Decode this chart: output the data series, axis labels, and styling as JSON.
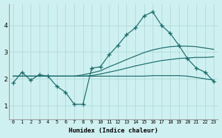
{
  "title": "",
  "xlabel": "Humidex (Indice chaleur)",
  "x_ticks": [
    0,
    1,
    2,
    3,
    4,
    5,
    6,
    7,
    8,
    9,
    10,
    11,
    12,
    13,
    14,
    15,
    16,
    17,
    18,
    19,
    20,
    21,
    22,
    23
  ],
  "ylim": [
    0.5,
    4.8
  ],
  "xlim": [
    -0.5,
    23.5
  ],
  "background_color": "#cff0f0",
  "grid_color": "#aadada",
  "line_color": "#1a6b6b",
  "line1": [
    1.85,
    2.25,
    1.95,
    2.15,
    2.1,
    1.72,
    1.5,
    1.05,
    1.05,
    2.4,
    2.45,
    2.9,
    3.25,
    3.65,
    3.9,
    4.35,
    4.5,
    4.0,
    3.7,
    3.25,
    2.75,
    2.4,
    2.25,
    1.9
  ],
  "line2": [
    2.1,
    2.1,
    2.1,
    2.1,
    2.1,
    2.1,
    2.1,
    2.1,
    2.1,
    2.12,
    2.18,
    2.25,
    2.32,
    2.4,
    2.48,
    2.55,
    2.62,
    2.68,
    2.72,
    2.76,
    2.78,
    2.8,
    2.8,
    2.82
  ],
  "line3": [
    2.1,
    2.1,
    2.1,
    2.1,
    2.1,
    2.1,
    2.1,
    2.1,
    2.15,
    2.22,
    2.3,
    2.45,
    2.58,
    2.72,
    2.85,
    2.98,
    3.08,
    3.15,
    3.2,
    3.22,
    3.22,
    3.2,
    3.15,
    3.1
  ],
  "line4": [
    2.1,
    2.1,
    2.1,
    2.1,
    2.1,
    2.1,
    2.1,
    2.1,
    2.1,
    2.1,
    2.1,
    2.1,
    2.1,
    2.1,
    2.1,
    2.1,
    2.12,
    2.12,
    2.12,
    2.12,
    2.1,
    2.05,
    2.0,
    1.95
  ]
}
